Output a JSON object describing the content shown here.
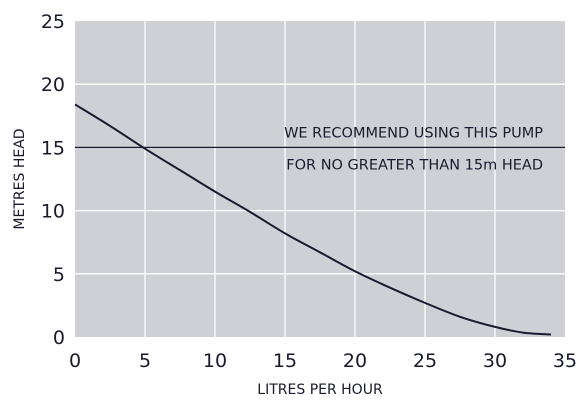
{
  "chart_data": {
    "type": "line",
    "title": "",
    "xlabel": "LITRES PER HOUR",
    "ylabel": "METRES  HEAD",
    "xlim": [
      0,
      35
    ],
    "ylim": [
      0,
      25
    ],
    "xticks": [
      0,
      5,
      10,
      15,
      20,
      25,
      30,
      35
    ],
    "yticks": [
      0,
      5,
      10,
      15,
      20,
      25
    ],
    "grid": true,
    "legend": "none",
    "colors": {
      "plot_background": "#cfd0d6",
      "grid": "#ffffff",
      "line": "#1a1a2e",
      "text": "#1a1a2e"
    },
    "series": [
      {
        "x": [
          0,
          2.5,
          5,
          7.5,
          10,
          12.5,
          15,
          17.5,
          20,
          22.5,
          25,
          27.5,
          30,
          32,
          34
        ],
        "y": [
          18.4,
          16.7,
          14.9,
          13.2,
          11.5,
          9.9,
          8.2,
          6.7,
          5.2,
          3.9,
          2.7,
          1.6,
          0.8,
          0.35,
          0.2
        ]
      }
    ],
    "reference_line": {
      "y": 15
    },
    "annotations": [
      "WE RECOMMEND USING THIS PUMP",
      "FOR NO GREATER THAN 15m HEAD"
    ]
  }
}
